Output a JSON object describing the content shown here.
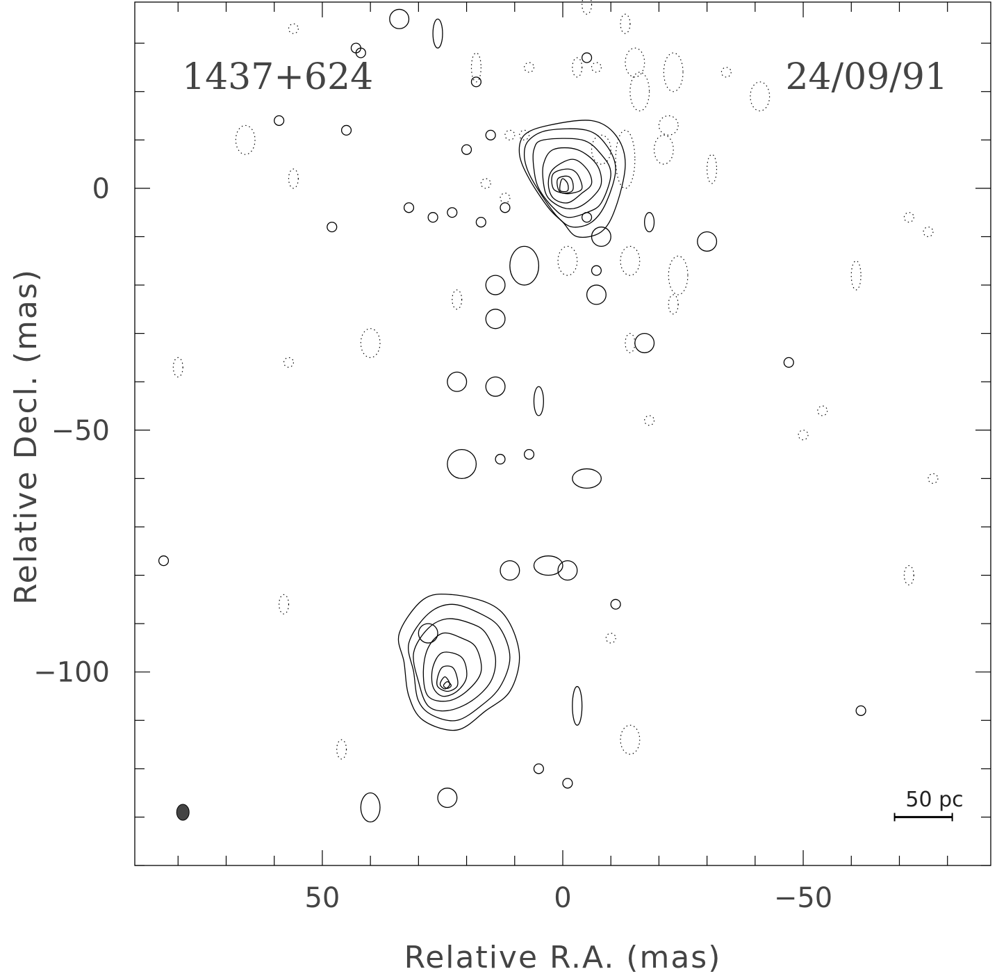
{
  "chart_data": {
    "type": "contour",
    "source_name": "1437+624",
    "date": "24/09/91",
    "xlabel": "Relative R.A. (mas)",
    "ylabel": "Relative Decl. (mas)",
    "xlim": [
      89,
      -89
    ],
    "ylim": [
      -140,
      38.5
    ],
    "x_ticks": [
      50,
      0,
      -50
    ],
    "x_tick_labels": [
      "50",
      "0",
      "−50"
    ],
    "y_ticks": [
      0,
      -50,
      -100
    ],
    "y_tick_labels": [
      "0",
      "−50",
      "−100"
    ],
    "minor_tick_step": 10,
    "scale_bar": {
      "label": "50 pc",
      "x_start": -69,
      "x_end": -81,
      "y": -130
    },
    "beam": {
      "x": 79,
      "y": -129,
      "major": 3.3,
      "minor": 2.6
    },
    "components": [
      {
        "name": "core",
        "x": 0,
        "y": -2,
        "peak_contour_levels": 8
      },
      {
        "name": "southern_lobe",
        "x": 24,
        "y": -104,
        "peak_contour_levels": 8
      }
    ],
    "core_contours": [
      [
        [
          -6,
          14
        ],
        [
          -11,
          11
        ],
        [
          -13,
          5
        ],
        [
          -11,
          -4
        ],
        [
          -8,
          -9
        ],
        [
          -3,
          -10
        ],
        [
          0,
          -7
        ],
        [
          3,
          -4
        ],
        [
          7,
          2
        ],
        [
          9,
          7
        ],
        [
          8,
          11
        ],
        [
          3,
          13
        ]
      ],
      [
        [
          -5,
          12
        ],
        [
          -9,
          9
        ],
        [
          -11,
          4
        ],
        [
          -9,
          -3
        ],
        [
          -6,
          -7
        ],
        [
          -2,
          -8
        ],
        [
          1,
          -6
        ],
        [
          4,
          -2
        ],
        [
          7,
          3
        ],
        [
          8,
          7
        ],
        [
          7,
          10
        ],
        [
          3,
          12
        ]
      ],
      [
        [
          -4,
          10
        ],
        [
          -8,
          7
        ],
        [
          -10,
          3
        ],
        [
          -8,
          -3
        ],
        [
          -5,
          -5
        ],
        [
          -1,
          -6
        ],
        [
          2,
          -4
        ],
        [
          5,
          0
        ],
        [
          6,
          4
        ],
        [
          6,
          8
        ],
        [
          4,
          10
        ]
      ],
      [
        [
          -3,
          8
        ],
        [
          -7,
          5
        ],
        [
          -8,
          1
        ],
        [
          -6,
          -2
        ],
        [
          -3,
          -4
        ],
        [
          0,
          -4
        ],
        [
          3,
          -2
        ],
        [
          4,
          1
        ],
        [
          4,
          5
        ],
        [
          2,
          8
        ]
      ],
      [
        [
          -2,
          6
        ],
        [
          -5,
          4
        ],
        [
          -6,
          1
        ],
        [
          -4,
          -1
        ],
        [
          -1,
          -3
        ],
        [
          2,
          -2
        ],
        [
          3,
          1
        ],
        [
          2,
          4
        ]
      ],
      [
        [
          -1,
          4
        ],
        [
          -3,
          3
        ],
        [
          -4,
          0
        ],
        [
          -2,
          -1
        ],
        [
          0,
          -1
        ],
        [
          2,
          0
        ],
        [
          2,
          3
        ]
      ],
      [
        [
          -1,
          2.5
        ],
        [
          -2,
          1.5
        ],
        [
          -2,
          -0.5
        ],
        [
          0,
          -1
        ],
        [
          1,
          0
        ],
        [
          1,
          2
        ]
      ],
      [
        [
          0,
          2
        ],
        [
          -1,
          1
        ],
        [
          -1,
          -0.5
        ],
        [
          0.5,
          -0.5
        ],
        [
          0.5,
          1
        ]
      ]
    ],
    "lobe_contours": [
      [
        [
          23,
          -84
        ],
        [
          29,
          -85
        ],
        [
          34,
          -92
        ],
        [
          33,
          -98
        ],
        [
          32,
          -105
        ],
        [
          29,
          -110
        ],
        [
          22,
          -112
        ],
        [
          16,
          -108
        ],
        [
          11,
          -104
        ],
        [
          9,
          -97
        ],
        [
          11,
          -90
        ],
        [
          15,
          -86
        ]
      ],
      [
        [
          23,
          -86
        ],
        [
          28,
          -88
        ],
        [
          32,
          -94
        ],
        [
          31,
          -100
        ],
        [
          30,
          -106
        ],
        [
          27,
          -109
        ],
        [
          22,
          -110
        ],
        [
          17,
          -107
        ],
        [
          13,
          -103
        ],
        [
          11,
          -97
        ],
        [
          13,
          -91
        ],
        [
          17,
          -88
        ]
      ],
      [
        [
          24,
          -89
        ],
        [
          28,
          -91
        ],
        [
          31,
          -96
        ],
        [
          30,
          -102
        ],
        [
          28,
          -107
        ],
        [
          24,
          -108
        ],
        [
          19,
          -106
        ],
        [
          15,
          -102
        ],
        [
          14,
          -97
        ],
        [
          16,
          -92
        ],
        [
          19,
          -90
        ]
      ],
      [
        [
          25,
          -92
        ],
        [
          28,
          -95
        ],
        [
          29,
          -100
        ],
        [
          28,
          -105
        ],
        [
          24,
          -106
        ],
        [
          20,
          -104
        ],
        [
          17,
          -100
        ],
        [
          18,
          -95
        ],
        [
          21,
          -93
        ]
      ],
      [
        [
          25,
          -96
        ],
        [
          27,
          -99
        ],
        [
          27,
          -103
        ],
        [
          25,
          -105
        ],
        [
          22,
          -104
        ],
        [
          20,
          -101
        ],
        [
          21,
          -97
        ]
      ],
      [
        [
          25,
          -99
        ],
        [
          26,
          -101
        ],
        [
          26,
          -103
        ],
        [
          24,
          -104
        ],
        [
          22,
          -103
        ],
        [
          22,
          -101
        ],
        [
          23,
          -99
        ]
      ],
      [
        [
          24.5,
          -101
        ],
        [
          25.5,
          -102.5
        ],
        [
          24.5,
          -103.5
        ],
        [
          23.5,
          -102.5
        ]
      ],
      [
        [
          24,
          -102
        ],
        [
          24.8,
          -102.8
        ],
        [
          24,
          -103.4
        ],
        [
          23.2,
          -102.8
        ]
      ]
    ],
    "blobs": [
      [
        -8,
        -10,
        2,
        2
      ],
      [
        -30,
        -11,
        2,
        2
      ],
      [
        -18,
        -7,
        1,
        2
      ],
      [
        -7,
        -22,
        2,
        2
      ],
      [
        14,
        -20,
        2,
        2
      ],
      [
        14,
        -27,
        2,
        2
      ],
      [
        -17,
        -32,
        2,
        2
      ],
      [
        -47,
        -36,
        1,
        1
      ],
      [
        22,
        -40,
        2,
        2
      ],
      [
        14,
        -41,
        2,
        2
      ],
      [
        5,
        -44,
        1,
        3
      ],
      [
        21,
        -57,
        3,
        3
      ],
      [
        13,
        -56,
        1,
        1
      ],
      [
        7,
        -55,
        1,
        1
      ],
      [
        -5,
        -60,
        3,
        2
      ],
      [
        11,
        -79,
        2,
        2
      ],
      [
        3,
        -78,
        3,
        2
      ],
      [
        -1,
        -79,
        2,
        2
      ],
      [
        -11,
        -86,
        1,
        1
      ],
      [
        -62,
        -108,
        1,
        1
      ],
      [
        5,
        -120,
        1,
        1
      ],
      [
        28,
        -92,
        2,
        2
      ],
      [
        -3,
        -107,
        1,
        4
      ],
      [
        -1,
        -123,
        1,
        1
      ],
      [
        24,
        -126,
        2,
        2
      ],
      [
        48,
        -8,
        1,
        1
      ],
      [
        32,
        -4,
        1,
        1
      ],
      [
        27,
        -6,
        1,
        1
      ],
      [
        23,
        -5,
        1,
        1
      ],
      [
        17,
        -7,
        1,
        1
      ],
      [
        12,
        -4,
        1,
        1
      ],
      [
        -5,
        -6,
        1,
        1
      ],
      [
        18,
        22,
        1,
        1
      ],
      [
        20,
        8,
        1,
        1
      ],
      [
        15,
        11,
        1,
        1
      ],
      [
        45,
        12,
        1,
        1
      ],
      [
        59,
        14,
        1,
        1
      ],
      [
        43,
        29,
        1,
        1
      ],
      [
        -5,
        27,
        1,
        1
      ],
      [
        34,
        35,
        2,
        2
      ],
      [
        26,
        32,
        1,
        3
      ],
      [
        42,
        28,
        1,
        1
      ],
      [
        83,
        -77,
        1,
        1
      ],
      [
        -7,
        -17,
        1,
        1
      ],
      [
        8,
        -16,
        3,
        4
      ],
      [
        40,
        -128,
        2,
        3
      ]
    ],
    "negative_blobs": [
      [
        66,
        10,
        2,
        3
      ],
      [
        56,
        2,
        1,
        2
      ],
      [
        40,
        -32,
        2,
        3
      ],
      [
        -1,
        -15,
        2,
        3
      ],
      [
        -14,
        -15,
        2,
        3
      ],
      [
        -23,
        -24,
        1,
        2
      ],
      [
        -14,
        -32,
        1,
        2
      ],
      [
        -18,
        -48,
        1,
        1
      ],
      [
        -50,
        -51,
        1,
        1
      ],
      [
        -61,
        -18,
        1,
        3
      ],
      [
        -72,
        -6,
        1,
        1
      ],
      [
        -76,
        -9,
        1,
        1
      ],
      [
        -77,
        -60,
        1,
        1
      ],
      [
        -72,
        -80,
        1,
        2
      ],
      [
        -54,
        -46,
        1,
        1
      ],
      [
        58,
        -86,
        1,
        2
      ],
      [
        46,
        -116,
        1,
        2
      ],
      [
        -14,
        -114,
        2,
        3
      ],
      [
        -10,
        -93,
        1,
        1
      ],
      [
        -24,
        -18,
        2,
        4
      ],
      [
        -16,
        20,
        2,
        4
      ],
      [
        -22,
        13,
        2,
        2
      ],
      [
        -21,
        8,
        2,
        3
      ],
      [
        -31,
        4,
        1,
        3
      ],
      [
        -41,
        19,
        2,
        3
      ],
      [
        -34,
        24,
        1,
        1
      ],
      [
        -23,
        24,
        2,
        4
      ],
      [
        18,
        25,
        1,
        3
      ],
      [
        -7,
        25,
        1,
        1
      ],
      [
        -3,
        25,
        1,
        2
      ],
      [
        7,
        25,
        1,
        1
      ],
      [
        11,
        11,
        1,
        1
      ],
      [
        8,
        11,
        1,
        1
      ],
      [
        12,
        -2,
        1,
        1
      ],
      [
        16,
        1,
        1,
        1
      ],
      [
        22,
        -23,
        1,
        2
      ],
      [
        -13,
        6,
        2,
        6
      ],
      [
        -8,
        8,
        2,
        3
      ],
      [
        -15,
        26,
        2,
        3
      ],
      [
        -13,
        34,
        1,
        2
      ],
      [
        -5,
        38,
        1,
        2
      ],
      [
        56,
        33,
        1,
        1
      ],
      [
        80,
        -37,
        1,
        2
      ],
      [
        57,
        -36,
        1,
        1
      ]
    ]
  }
}
